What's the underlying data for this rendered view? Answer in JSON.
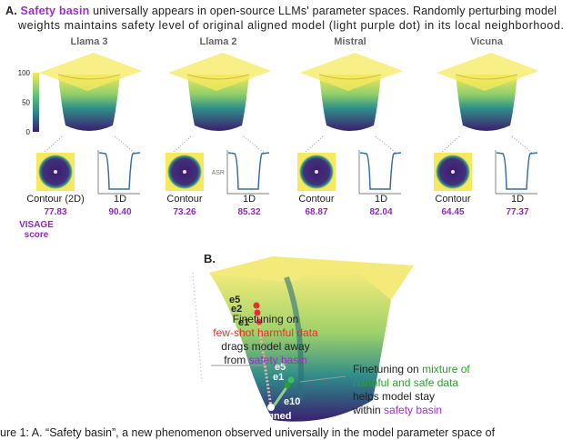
{
  "panel_a": {
    "label": "A.",
    "highlight": "Safety basin",
    "caption_line_1": "universally appears in open-source LLMs' parameter spaces. Randomly perturbing model",
    "caption_line_2": "weights maintains safety level of original aligned model (light purple dot) in its local neighborhood.",
    "colorbar_ticks": [
      "100",
      "50",
      "0"
    ],
    "asr_label": "ASR",
    "models": [
      {
        "name": "Llama 3",
        "contour_label": "Contour (2D)",
        "contour_score": "77.83",
        "line_label": "1D",
        "line_score": "90.40"
      },
      {
        "name": "Llama 2",
        "contour_label": "Contour",
        "contour_score": "73.26",
        "line_label": "1D",
        "line_score": "85.32"
      },
      {
        "name": "Mistral",
        "contour_label": "Contour",
        "contour_score": "68.87",
        "line_label": "1D",
        "line_score": "82.04"
      },
      {
        "name": "Vicuna",
        "contour_label": "Contour",
        "contour_score": "64.45",
        "line_label": "1D",
        "line_score": "77.37"
      }
    ],
    "visage": "VISAGE",
    "score": "score"
  },
  "panel_b": {
    "label": "B.",
    "harmful_epochs": [
      "e5",
      "e2",
      "e1"
    ],
    "mixed_epochs": [
      "e5",
      "e1",
      "e10"
    ],
    "aligned": "aligned",
    "left_note": {
      "line_1": "Finetuning on",
      "line_2": "few-shot harmful data",
      "line_3": "drags model away",
      "line_4a": "from",
      "line_4b": "safety basin"
    },
    "right_note": {
      "line_1a": "Finetuning on",
      "line_1b": "mixture of",
      "line_2": "harmful and safe data",
      "line_3": "helps model stay",
      "line_4a": "within",
      "line_4b": "safety basin"
    }
  },
  "caption": "ure 1: A. “Safety basin”, a new phenomenon observed universally in the model parameter space of"
}
